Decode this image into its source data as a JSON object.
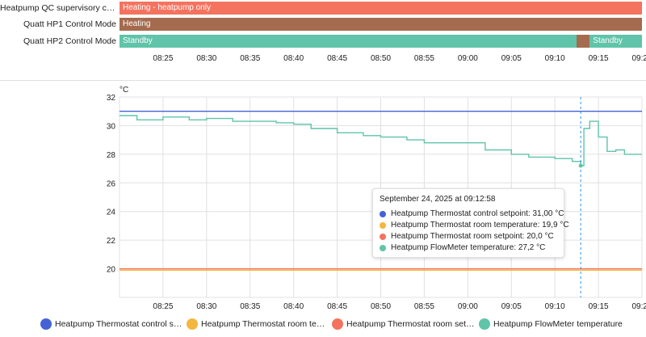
{
  "timeline": {
    "rows": [
      {
        "label": "Heatpump QC supervisory contr...",
        "segments": [
          {
            "text": "Heating - heatpump only",
            "from": "08:20",
            "to": "09:20",
            "color": "#f4735f"
          }
        ]
      },
      {
        "label": "Quatt HP1 Control Mode",
        "segments": [
          {
            "text": "Heating",
            "from": "08:20",
            "to": "09:20",
            "color": "#a56b4e"
          }
        ]
      },
      {
        "label": "Quatt HP2 Control Mode",
        "segments": [
          {
            "text": "Standby",
            "from": "08:20",
            "to": "09:12:30",
            "color": "#5fc4a9"
          },
          {
            "text": "",
            "from": "09:12:30",
            "to": "09:14",
            "color": "#a56b4e"
          },
          {
            "text": "Standby",
            "from": "09:14",
            "to": "09:20",
            "color": "#5fc4a9"
          }
        ]
      }
    ],
    "ticks": [
      "08:25",
      "08:30",
      "08:35",
      "08:40",
      "08:45",
      "08:50",
      "08:55",
      "09:00",
      "09:05",
      "09:10",
      "09:15",
      "09:20"
    ]
  },
  "chart_data": {
    "type": "line",
    "yunit": "°C",
    "ylim": [
      18,
      32
    ],
    "yticks": [
      20,
      22,
      24,
      26,
      28,
      30,
      32
    ],
    "xlim": [
      "08:20",
      "09:20"
    ],
    "xticks": [
      "08:25",
      "08:30",
      "08:35",
      "08:40",
      "08:45",
      "08:50",
      "08:55",
      "09:00",
      "09:05",
      "09:10",
      "09:15",
      "09:20"
    ],
    "grid": true,
    "legend_position": "bottom",
    "cursor_time": "09:12:58",
    "series": [
      {
        "name": "Heatpump Thermostat control setpoint",
        "color": "#4462d6",
        "x": [
          "08:20",
          "09:20"
        ],
        "y": [
          31.0,
          31.0
        ]
      },
      {
        "name": "Heatpump Thermostat room temperature",
        "color": "#f3b63e",
        "x": [
          "08:20",
          "09:20"
        ],
        "y": [
          19.9,
          19.9
        ]
      },
      {
        "name": "Heatpump Thermostat room setpoint",
        "color": "#f4735f",
        "x": [
          "08:20",
          "09:20"
        ],
        "y": [
          20.0,
          20.0
        ]
      },
      {
        "name": "Heatpump FlowMeter temperature",
        "color": "#5fc4a9",
        "x": [
          "08:20",
          "08:22",
          "08:25",
          "08:28",
          "08:30",
          "08:33",
          "08:35",
          "08:38",
          "08:40",
          "08:42",
          "08:45",
          "08:48",
          "08:50",
          "08:53",
          "08:55",
          "08:58",
          "09:00",
          "09:02",
          "09:05",
          "09:07",
          "09:10",
          "09:12",
          "09:12:58",
          "09:13:20",
          "09:14",
          "09:15",
          "09:16",
          "09:17",
          "09:18",
          "09:20"
        ],
        "y": [
          30.7,
          30.4,
          30.6,
          30.4,
          30.5,
          30.3,
          30.3,
          30.2,
          30.1,
          29.8,
          29.5,
          29.3,
          29.2,
          29.0,
          28.8,
          28.8,
          28.8,
          28.3,
          28.0,
          27.8,
          27.7,
          27.5,
          27.2,
          29.8,
          30.3,
          29.2,
          28.2,
          28.3,
          28.0,
          28.0
        ]
      }
    ]
  },
  "tooltip": {
    "title": "September 24, 2025 at 09:12:58",
    "lines": [
      {
        "text": "Heatpump Thermostat control setpoint: 31,00 °C",
        "color": "#4462d6"
      },
      {
        "text": "Heatpump Thermostat room temperature: 19,9 °C",
        "color": "#f3b63e"
      },
      {
        "text": "Heatpump Thermostat room setpoint: 20,0 °C",
        "color": "#f4735f"
      },
      {
        "text": "Heatpump FlowMeter temperature: 27,2 °C",
        "color": "#5fc4a9"
      }
    ]
  },
  "legend": [
    {
      "text": "Heatpump Thermostat control setp...",
      "color": "#4462d6"
    },
    {
      "text": "Heatpump Thermostat room tempe...",
      "color": "#f3b63e"
    },
    {
      "text": "Heatpump Thermostat room setpoi...",
      "color": "#f4735f"
    },
    {
      "text": "Heatpump FlowMeter temperature",
      "color": "#5fc4a9"
    }
  ]
}
